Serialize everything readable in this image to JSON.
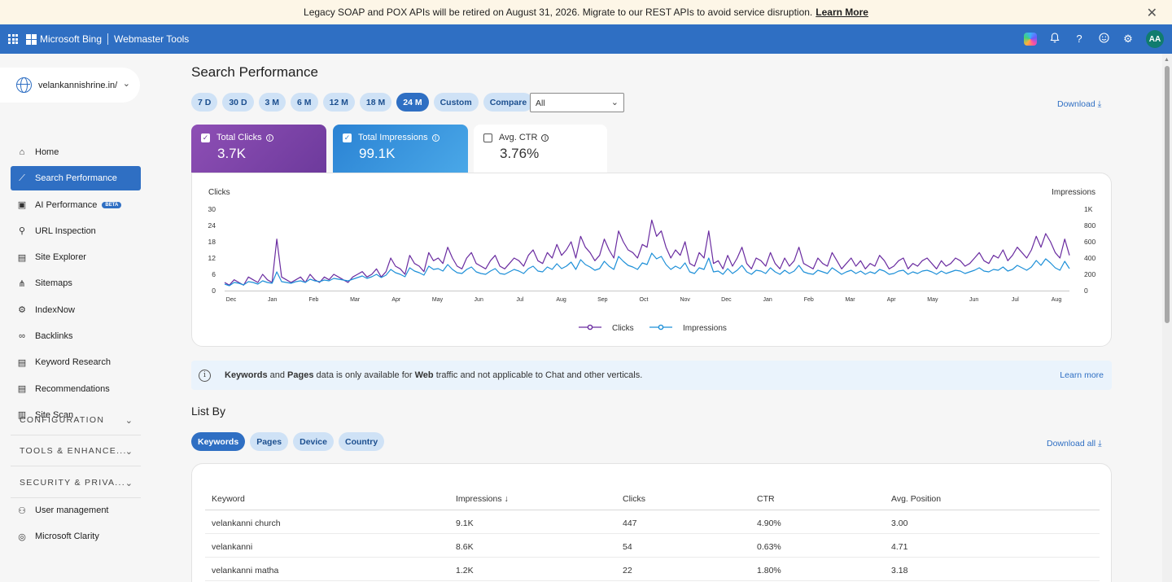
{
  "banner": {
    "message": "Legacy SOAP and POX APIs will be retired on August 31, 2026. Migrate to our REST APIs to avoid service disruption.",
    "link": "Learn More",
    "close_icon": "close-icon"
  },
  "topbar": {
    "brand": "Microsoft Bing",
    "product": "Webmaster Tools",
    "avatar": "AA",
    "icons": [
      "apps-grid-icon",
      "copilot-icon",
      "bell-icon",
      "help-icon",
      "smiley-icon",
      "gear-icon"
    ]
  },
  "sidebar": {
    "site": "velankannishrine.in/",
    "items": [
      {
        "label": "Home",
        "icon": "home-icon"
      },
      {
        "label": "Search Performance",
        "icon": "trend-icon",
        "active": true
      },
      {
        "label": "AI Performance",
        "icon": "ai-icon",
        "badge": "BETA"
      },
      {
        "label": "URL Inspection",
        "icon": "search-icon"
      },
      {
        "label": "Site Explorer",
        "icon": "document-icon"
      },
      {
        "label": "Sitemaps",
        "icon": "sitemap-icon"
      },
      {
        "label": "IndexNow",
        "icon": "indexnow-icon"
      },
      {
        "label": "Backlinks",
        "icon": "link-icon"
      },
      {
        "label": "Keyword Research",
        "icon": "document-icon"
      },
      {
        "label": "Recommendations",
        "icon": "document-icon"
      },
      {
        "label": "Site Scan",
        "icon": "scan-icon"
      }
    ],
    "sections": [
      "CONFIGURATION",
      "TOOLS & ENHANCE...",
      "SECURITY & PRIVA..."
    ],
    "bottom_items": [
      {
        "label": "User management",
        "icon": "user-icon"
      },
      {
        "label": "Microsoft Clarity",
        "icon": "clarity-icon"
      }
    ]
  },
  "main": {
    "title": "Search Performance",
    "ranges": [
      "7 D",
      "30 D",
      "3 M",
      "6 M",
      "12 M",
      "18 M",
      "24 M",
      "Custom",
      "Compare"
    ],
    "active_range": "24 M",
    "filter_value": "All",
    "download": "Download",
    "metrics": {
      "clicks": {
        "label": "Total Clicks",
        "value": "3.7K",
        "checked": true
      },
      "impressions": {
        "label": "Total Impressions",
        "value": "99.1K",
        "checked": true
      },
      "ctr": {
        "label": "Avg. CTR",
        "value": "3.76%",
        "checked": false
      }
    },
    "notice": {
      "text_parts": [
        "Keywords",
        " and ",
        "Pages",
        " data is only available for ",
        "Web",
        " traffic and not applicable to Chat and other verticals."
      ],
      "link": "Learn more"
    },
    "list_title": "List By",
    "list_tabs": [
      "Keywords",
      "Pages",
      "Device",
      "Country"
    ],
    "active_list_tab": "Keywords",
    "download_all": "Download all",
    "table": {
      "columns": [
        "Keyword",
        "Impressions",
        "Clicks",
        "CTR",
        "Avg. Position"
      ],
      "sort_indicator": "↓",
      "rows": [
        [
          "velankanni church",
          "9.1K",
          "447",
          "4.90%",
          "3.00"
        ],
        [
          "velankanni",
          "8.6K",
          "54",
          "0.63%",
          "4.71"
        ],
        [
          "velankanni matha",
          "1.2K",
          "22",
          "1.80%",
          "3.18"
        ]
      ]
    }
  },
  "colors": {
    "accent": "#2f6fc3",
    "clicks": "#6a2ca0",
    "impressions": "#1e90d8",
    "banner_bg": "#fdf6e7"
  },
  "chart_data": {
    "type": "line",
    "y_left_label": "Clicks",
    "y_right_label": "Impressions",
    "y_left_ticks": [
      "0",
      "6",
      "12",
      "18",
      "24",
      "30"
    ],
    "y_right_ticks": [
      "0",
      "200",
      "400",
      "600",
      "800",
      "1K"
    ],
    "ylim_left": [
      0,
      30
    ],
    "ylim_right": [
      0,
      1000
    ],
    "x_ticks": [
      "Dec",
      "Jan",
      "Feb",
      "Mar",
      "Apr",
      "May",
      "Jun",
      "Jul",
      "Aug",
      "Sep",
      "Oct",
      "Nov",
      "Dec",
      "Jan",
      "Feb",
      "Mar",
      "Apr",
      "May",
      "Jun",
      "Jul",
      "Aug"
    ],
    "legend_position": "bottom-center",
    "series": [
      {
        "name": "Clicks",
        "axis": "left",
        "color": "#6a2ca0",
        "values": [
          3,
          2,
          4,
          3,
          2,
          5,
          4,
          3,
          6,
          4,
          3,
          19,
          5,
          4,
          3,
          4,
          5,
          3,
          6,
          4,
          3,
          5,
          4,
          6,
          5,
          4,
          3,
          5,
          6,
          7,
          5,
          6,
          8,
          5,
          7,
          12,
          9,
          8,
          6,
          13,
          10,
          9,
          7,
          14,
          11,
          12,
          10,
          16,
          12,
          9,
          8,
          12,
          14,
          10,
          9,
          8,
          11,
          13,
          9,
          8,
          10,
          12,
          11,
          9,
          13,
          15,
          11,
          10,
          14,
          12,
          17,
          13,
          15,
          18,
          12,
          20,
          16,
          14,
          11,
          13,
          19,
          15,
          12,
          22,
          18,
          15,
          14,
          12,
          17,
          16,
          26,
          20,
          22,
          16,
          12,
          15,
          13,
          18,
          10,
          9,
          14,
          12,
          22,
          10,
          11,
          8,
          13,
          9,
          12,
          16,
          10,
          8,
          12,
          11,
          9,
          14,
          10,
          8,
          12,
          9,
          11,
          16,
          10,
          9,
          8,
          12,
          10,
          9,
          14,
          11,
          8,
          10,
          12,
          9,
          11,
          8,
          10,
          9,
          13,
          11,
          8,
          9,
          11,
          12,
          8,
          10,
          9,
          11,
          12,
          10,
          8,
          11,
          9,
          10,
          12,
          11,
          9,
          10,
          12,
          14,
          11,
          10,
          13,
          12,
          15,
          11,
          13,
          16,
          14,
          12,
          15,
          20,
          16,
          21,
          18,
          14,
          12,
          19,
          13
        ]
      },
      {
        "name": "Impressions",
        "axis": "right",
        "color": "#1e90d8",
        "values": [
          80,
          60,
          100,
          90,
          70,
          110,
          100,
          80,
          120,
          100,
          90,
          230,
          110,
          100,
          90,
          110,
          120,
          100,
          140,
          120,
          110,
          130,
          120,
          150,
          140,
          130,
          120,
          140,
          160,
          180,
          150,
          170,
          200,
          160,
          190,
          260,
          220,
          200,
          170,
          280,
          240,
          220,
          190,
          300,
          260,
          270,
          240,
          320,
          260,
          220,
          210,
          260,
          290,
          230,
          210,
          200,
          240,
          270,
          210,
          200,
          230,
          260,
          240,
          210,
          270,
          300,
          240,
          230,
          290,
          260,
          330,
          270,
          300,
          350,
          260,
          380,
          320,
          290,
          250,
          270,
          360,
          300,
          260,
          420,
          360,
          310,
          290,
          260,
          340,
          320,
          460,
          390,
          420,
          320,
          260,
          300,
          270,
          340,
          230,
          210,
          280,
          260,
          400,
          230,
          240,
          200,
          270,
          210,
          250,
          310,
          230,
          200,
          250,
          240,
          210,
          280,
          230,
          200,
          250,
          210,
          240,
          310,
          230,
          210,
          200,
          250,
          230,
          210,
          280,
          240,
          200,
          230,
          250,
          210,
          240,
          200,
          230,
          210,
          260,
          240,
          200,
          210,
          240,
          250,
          200,
          230,
          210,
          240,
          250,
          230,
          200,
          240,
          210,
          230,
          250,
          240,
          210,
          230,
          250,
          280,
          240,
          230,
          260,
          250,
          290,
          240,
          260,
          310,
          280,
          250,
          290,
          370,
          310,
          390,
          340,
          280,
          250,
          360,
          270
        ]
      }
    ]
  }
}
